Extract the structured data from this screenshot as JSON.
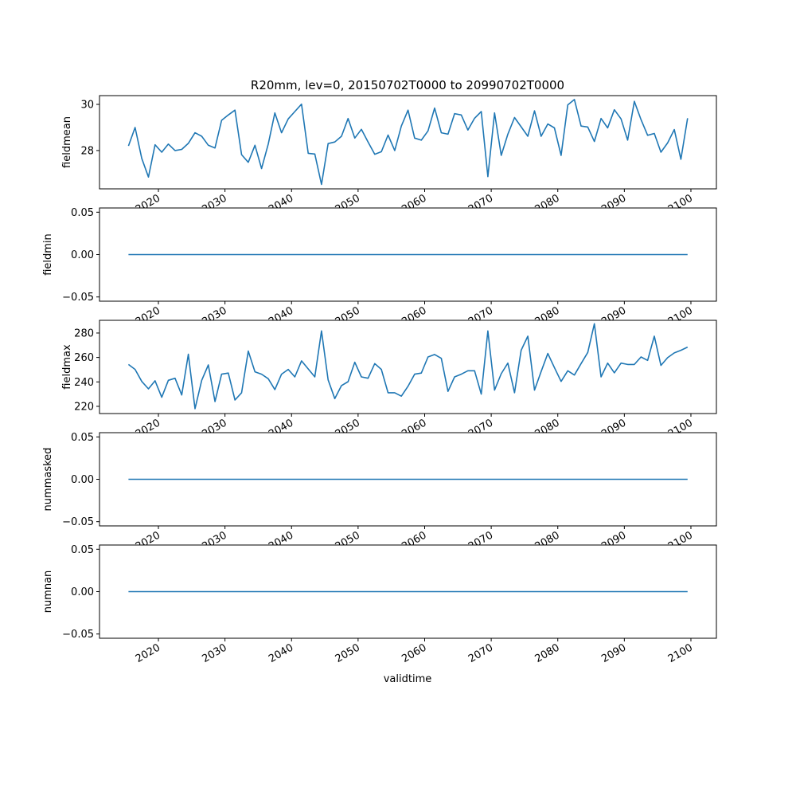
{
  "chart_data": {
    "type": "line",
    "title": "R20mm, lev=0, 20150702T0000 to 20990702T0000",
    "xlabel": "validtime",
    "line_color": "#1f77b4",
    "x_start_year": 2015.5,
    "x_step_years": 1,
    "xlim": [
      2011.15,
      2103.83
    ],
    "x_ticks": [
      2020,
      2030,
      2040,
      2050,
      2060,
      2070,
      2080,
      2090,
      2100
    ],
    "x_tick_labels": [
      "2020",
      "2030",
      "2040",
      "2050",
      "2060",
      "2070",
      "2080",
      "2090",
      "2100"
    ],
    "panels": [
      {
        "ylabel": "fieldmean",
        "ylim": [
          26.34,
          30.38
        ],
        "y_ticks": [
          28,
          30
        ],
        "y_tick_labels": [
          "28",
          "30"
        ],
        "values": [
          28.2,
          29.0,
          27.66,
          26.85,
          28.25,
          27.93,
          28.28,
          28.0,
          28.05,
          28.31,
          28.77,
          28.62,
          28.23,
          28.11,
          29.31,
          29.54,
          29.75,
          27.82,
          27.49,
          28.23,
          27.22,
          28.28,
          29.63,
          28.77,
          29.37,
          29.69,
          30.01,
          27.88,
          27.85,
          26.53,
          28.3,
          28.37,
          28.62,
          29.39,
          28.54,
          28.92,
          28.37,
          27.84,
          27.95,
          28.67,
          28.0,
          29.06,
          29.75,
          28.54,
          28.45,
          28.85,
          29.84,
          28.77,
          28.71,
          29.6,
          29.54,
          28.89,
          29.4,
          29.69,
          26.87,
          29.63,
          27.79,
          28.71,
          29.43,
          29.03,
          28.62,
          29.72,
          28.62,
          29.15,
          28.98,
          27.79,
          29.98,
          30.21,
          29.06,
          29.02,
          28.39,
          29.39,
          28.98,
          29.77,
          29.37,
          28.45,
          30.13,
          29.34,
          28.66,
          28.74,
          27.93,
          28.33,
          28.91,
          27.62,
          29.4
        ]
      },
      {
        "ylabel": "fieldmin",
        "ylim": [
          -0.055,
          0.055
        ],
        "y_ticks": [
          -0.05,
          0,
          0.05
        ],
        "y_tick_labels": [
          "−0.05",
          "0.00",
          "0.05"
        ],
        "constant_value": 0
      },
      {
        "ylabel": "fieldmax",
        "ylim": [
          214.1,
          290.4
        ],
        "y_ticks": [
          220,
          240,
          260,
          280
        ],
        "y_tick_labels": [
          "220",
          "240",
          "260",
          "280"
        ],
        "values": [
          254.3,
          250.2,
          240.4,
          234.3,
          240.9,
          227.4,
          241.3,
          243.0,
          229.3,
          262.6,
          218.0,
          241.3,
          253.9,
          223.9,
          246.3,
          247.2,
          225.2,
          231.1,
          265.2,
          248.3,
          246.3,
          242.6,
          233.7,
          246.3,
          250.2,
          244.1,
          257.2,
          250.6,
          244.1,
          281.7,
          241.7,
          226.3,
          237.0,
          240.2,
          256.1,
          244.1,
          243.0,
          255.0,
          250.2,
          231.1,
          231.1,
          228.3,
          236.5,
          246.3,
          247.2,
          260.4,
          262.4,
          259.3,
          232.2,
          244.1,
          246.3,
          249.1,
          249.1,
          230.0,
          281.7,
          233.3,
          246.7,
          255.4,
          231.1,
          265.9,
          277.4,
          233.3,
          248.5,
          263.3,
          251.7,
          240.4,
          249.1,
          245.6,
          255.0,
          264.1,
          287.6,
          244.1,
          255.4,
          247.4,
          255.4,
          254.3,
          254.3,
          260.4,
          257.6,
          277.4,
          253.5,
          259.8,
          263.7,
          265.9,
          268.5
        ]
      },
      {
        "ylabel": "nummasked",
        "ylim": [
          -0.055,
          0.055
        ],
        "y_ticks": [
          -0.05,
          0,
          0.05
        ],
        "y_tick_labels": [
          "−0.05",
          "0.00",
          "0.05"
        ],
        "constant_value": 0
      },
      {
        "ylabel": "numnan",
        "ylim": [
          -0.055,
          0.055
        ],
        "y_ticks": [
          -0.05,
          0,
          0.05
        ],
        "y_tick_labels": [
          "−0.05",
          "0.00",
          "0.05"
        ],
        "constant_value": 0
      }
    ]
  }
}
